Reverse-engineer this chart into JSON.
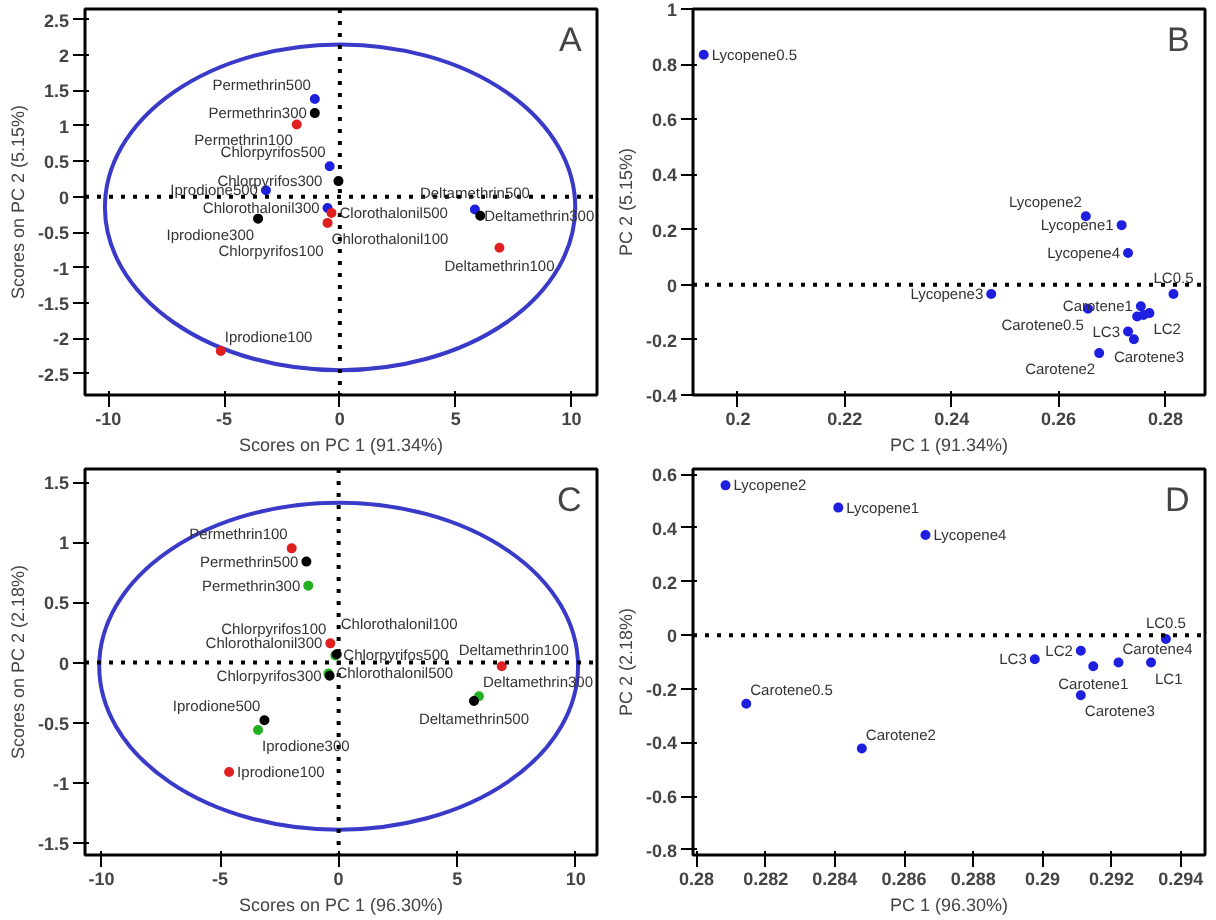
{
  "chart_data": [
    {
      "type": "scatter",
      "xlabel": "Scores on PC 1 (91.34%)",
      "ylabel": "Scores on PC 2 (5.15%)",
      "xlim": [
        -11,
        11.1
      ],
      "ylim": [
        -2.8,
        2.65
      ],
      "xticks": [
        -10,
        -5,
        0,
        5,
        10
      ],
      "yticks": [
        -2.5,
        -2,
        -1.5,
        -1,
        -0.5,
        0,
        0.5,
        1,
        1.5,
        2,
        2.5
      ],
      "marker": "circle",
      "grid": false,
      "ref_lines": [
        {
          "axis": "y",
          "value": 0,
          "color": "#000000",
          "line_style": "dotted"
        },
        {
          "axis": "x",
          "value": 0,
          "color": "#000000",
          "line_style": "dotted"
        }
      ],
      "series": [
        {
          "color": "#1f1fe0",
          "x": [
            -1.08,
            -0.44,
            -3.19,
            -0.53,
            5.83
          ],
          "values": [
            1.38,
            0.43,
            0.09,
            -0.16,
            -0.18
          ]
        },
        {
          "color": "#000000",
          "x": [
            -1.08,
            -0.06,
            -3.53,
            6.06
          ],
          "values": [
            1.18,
            0.22,
            -0.31,
            -0.27
          ]
        },
        {
          "color": "#e02020",
          "x": [
            -1.86,
            -0.36,
            -0.53,
            6.89,
            -5.14
          ],
          "values": [
            1.02,
            -0.23,
            -0.37,
            -0.72,
            -2.18
          ]
        }
      ],
      "annotations": [
        "A",
        {
          "text": "Permethrin500",
          "x": -1.08,
          "y": 1.38
        },
        {
          "text": "Permethrin300",
          "x": -1.08,
          "y": 1.18
        },
        {
          "text": "Permethrin100",
          "x": -1.86,
          "y": 1.02
        },
        {
          "text": "Chlorpyrifos500",
          "x": -0.44,
          "y": 0.43
        },
        {
          "text": "Chlorpyrifos300",
          "x": -0.06,
          "y": 0.22
        },
        {
          "text": "Iprodione500",
          "x": -3.19,
          "y": 0.09
        },
        {
          "text": "Chlorothalonil300",
          "x": -0.53,
          "y": -0.16
        },
        {
          "text": "Iprodione300",
          "x": -3.53,
          "y": -0.31
        },
        {
          "text": "Chlorpyrifos100",
          "x": -0.53,
          "y": -0.37
        },
        {
          "text": "Clorothalonil500",
          "x": -0.36,
          "y": -0.23
        },
        {
          "text": "Chlorothalonil100",
          "x": -0.53,
          "y": -0.37
        },
        {
          "text": "Deltamethrin500",
          "x": 5.83,
          "y": -0.18
        },
        {
          "text": "Deltamethrin300",
          "x": 6.06,
          "y": -0.27
        },
        {
          "text": "Deltamethrin100",
          "x": 6.89,
          "y": -0.72
        },
        {
          "text": "Iprodione100",
          "x": -5.14,
          "y": -2.18
        }
      ]
    },
    {
      "type": "scatter",
      "xlabel": "PC 1 (91.34%)",
      "ylabel": "PC 2 (5.15%)",
      "xlim": [
        0.1916,
        0.2874
      ],
      "ylim": [
        -0.4,
        1
      ],
      "xticks": [
        0.2,
        0.22,
        0.24,
        0.26,
        0.28
      ],
      "yticks": [
        -0.4,
        -0.2,
        0,
        0.2,
        0.4,
        0.6,
        0.8,
        1
      ],
      "marker": "circle",
      "grid": false,
      "ref_lines": [
        {
          "axis": "y",
          "value": 0,
          "color": "#000000",
          "line_style": "dotted"
        }
      ],
      "series": [
        {
          "color": "#1f1fe0",
          "x": [
            0.1936,
            0.2651,
            0.2718,
            0.273,
            0.2474,
            0.2815,
            0.2655,
            0.2754,
            0.2747,
            0.2759,
            0.277,
            0.273,
            0.2741,
            0.2676
          ],
          "values": [
            0.834,
            0.248,
            0.216,
            0.115,
            -0.034,
            -0.034,
            -0.087,
            -0.078,
            -0.115,
            -0.11,
            -0.103,
            -0.17,
            -0.198,
            -0.248
          ]
        }
      ],
      "annotations": [
        "B",
        {
          "text": "Lycopene0.5",
          "x": 0.1936,
          "y": 0.834
        },
        {
          "text": "Lycopene2",
          "x": 0.2651,
          "y": 0.248
        },
        {
          "text": "Lycopene1",
          "x": 0.2718,
          "y": 0.216
        },
        {
          "text": "Lycopene4",
          "x": 0.273,
          "y": 0.115
        },
        {
          "text": "LC0.5",
          "x": 0.2815,
          "y": -0.034
        },
        {
          "text": "Lycopene3",
          "x": 0.2474,
          "y": -0.034
        },
        {
          "text": "Carotene1",
          "x": 0.2754,
          "y": -0.078
        },
        {
          "text": "Carotene0.5",
          "x": 0.2655,
          "y": -0.087
        },
        {
          "text": "LC2",
          "x": 0.277,
          "y": -0.103
        },
        {
          "text": "LC3",
          "x": 0.273,
          "y": -0.17
        },
        {
          "text": "Carotene3",
          "x": 0.2741,
          "y": -0.198
        },
        {
          "text": "Carotene2",
          "x": 0.2676,
          "y": -0.248
        }
      ]
    },
    {
      "type": "scatter",
      "xlabel": "Scores on PC 1 (96.30%)",
      "ylabel": "Scores on PC 2 (2.18%)",
      "xlim": [
        -10.7,
        10.9
      ],
      "ylim": [
        -1.6,
        1.61
      ],
      "xticks": [
        -10,
        -5,
        0,
        5,
        10
      ],
      "yticks": [
        -1.5,
        -1,
        -0.5,
        0,
        0.5,
        1,
        1.5
      ],
      "marker": "circle",
      "grid": false,
      "ref_lines": [
        {
          "axis": "y",
          "value": 0,
          "color": "#000000",
          "line_style": "dotted"
        },
        {
          "axis": "x",
          "value": 0,
          "color": "#000000",
          "line_style": "dotted"
        }
      ],
      "series": [
        {
          "color": "#e02020",
          "x": [
            -1.98,
            -0.35,
            6.88,
            -4.62
          ],
          "values": [
            0.95,
            0.16,
            -0.03,
            -0.91
          ]
        },
        {
          "color": "#22b022",
          "x": [
            -1.28,
            -0.14,
            -0.43,
            5.92,
            -3.4
          ],
          "values": [
            0.64,
            0.06,
            -0.09,
            -0.28,
            -0.56
          ]
        },
        {
          "color": "#000000",
          "x": [
            -1.36,
            -0.08,
            -0.38,
            5.71,
            -3.13
          ],
          "values": [
            0.84,
            0.07,
            -0.11,
            -0.32,
            -0.48
          ]
        }
      ],
      "annotations": [
        "C",
        {
          "text": "Permethrin100",
          "x": -1.98,
          "y": 0.95
        },
        {
          "text": "Permethrin500",
          "x": -1.36,
          "y": 0.84
        },
        {
          "text": "Permethrin300",
          "x": -1.28,
          "y": 0.64
        },
        {
          "text": "Chlorpyrifos100",
          "x": -0.35,
          "y": 0.16
        },
        {
          "text": "Chlorothalonil300",
          "x": -0.35,
          "y": 0.16
        },
        {
          "text": "Chlorpyrifos300",
          "x": -0.38,
          "y": -0.11
        },
        {
          "text": "Chlorothalonil100",
          "x": -0.08,
          "y": 0.07
        },
        {
          "text": "Chlorpyrifos500",
          "x": -0.14,
          "y": 0.06
        },
        {
          "text": "Chlorothalonil500",
          "x": -0.43,
          "y": -0.09
        },
        {
          "text": "Deltamethrin100",
          "x": 6.88,
          "y": -0.03
        },
        {
          "text": "Deltamethrin300",
          "x": 5.92,
          "y": -0.28
        },
        {
          "text": "Deltamethrin500",
          "x": 5.71,
          "y": -0.32
        },
        {
          "text": "Iprodione500",
          "x": -3.13,
          "y": -0.48
        },
        {
          "text": "Iprodione300",
          "x": -3.4,
          "y": -0.56
        },
        {
          "text": "Iprodione100",
          "x": -4.62,
          "y": -0.91
        }
      ]
    },
    {
      "type": "scatter",
      "xlabel": "PC 1 (96.30%)",
      "ylabel": "PC 2 (2.18%)",
      "xlim": [
        0.2799,
        0.2947
      ],
      "ylim": [
        -0.82,
        0.62
      ],
      "xticks": [
        0.28,
        0.282,
        0.284,
        0.286,
        0.288,
        0.29,
        0.292,
        0.294
      ],
      "yticks": [
        -0.8,
        -0.6,
        -0.4,
        -0.2,
        0,
        0.2,
        0.4,
        0.6
      ],
      "marker": "circle",
      "grid": false,
      "ref_lines": [
        {
          "axis": "y",
          "value": 0,
          "color": "#000000",
          "line_style": "dotted"
        }
      ],
      "series": [
        {
          "color": "#1f1fe0",
          "x": [
            0.28084,
            0.2841,
            0.28662,
            0.29357,
            0.29111,
            0.28978,
            0.29147,
            0.2922,
            0.29314,
            0.29111,
            0.28144,
            0.28478
          ],
          "values": [
            0.559,
            0.476,
            0.374,
            -0.014,
            -0.058,
            -0.09,
            -0.116,
            -0.102,
            -0.102,
            -0.224,
            -0.256,
            -0.423
          ]
        }
      ],
      "annotations": [
        "D",
        {
          "text": "Lycopene2",
          "x": 0.28084,
          "y": 0.559
        },
        {
          "text": "Lycopene1",
          "x": 0.2841,
          "y": 0.476
        },
        {
          "text": "Lycopene4",
          "x": 0.28662,
          "y": 0.374
        },
        {
          "text": "Carotene0.5",
          "x": 0.28144,
          "y": -0.256
        },
        {
          "text": "Carotene2",
          "x": 0.28478,
          "y": -0.423
        },
        {
          "text": "LC0.5",
          "x": 0.29357,
          "y": -0.014
        },
        {
          "text": "LC3",
          "x": 0.28978,
          "y": -0.09
        },
        {
          "text": "LC2",
          "x": 0.29111,
          "y": -0.058
        },
        {
          "text": "Carotene4",
          "x": 0.2922,
          "y": -0.102
        },
        {
          "text": "Carotene1",
          "x": 0.29147,
          "y": -0.116
        },
        {
          "text": "LC1",
          "x": 0.29314,
          "y": -0.102
        },
        {
          "text": "Carotene3",
          "x": 0.29111,
          "y": -0.224
        }
      ]
    }
  ]
}
